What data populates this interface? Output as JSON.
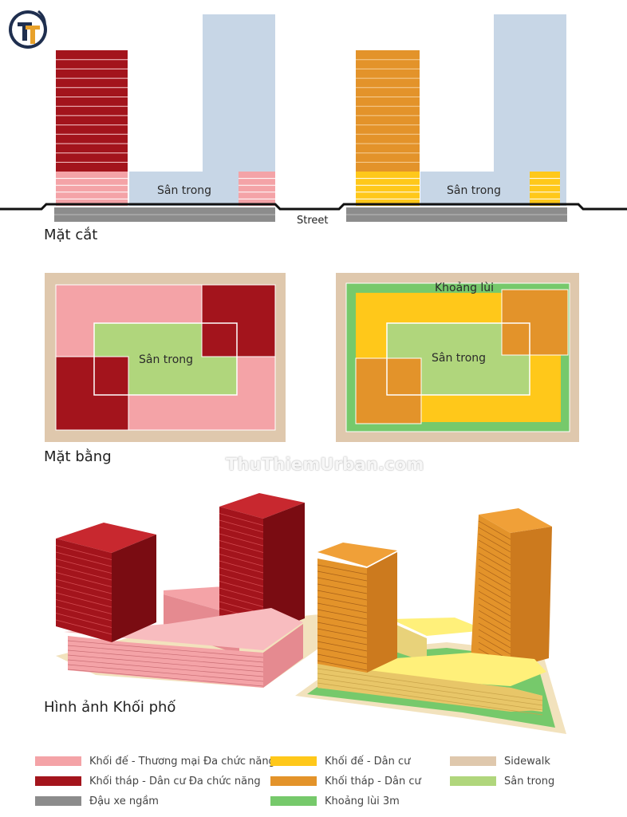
{
  "section_titles": {
    "section": "Mặt cắt",
    "plan": "Mặt bằng",
    "massing": "Hình ảnh Khối phố"
  },
  "labels": {
    "courtyard_left_section": "Sân trong",
    "courtyard_right_section": "Sân trong",
    "street": "Street",
    "courtyard_left_plan": "Sân trong",
    "courtyard_right_plan": "Sân trong",
    "setback": "Khoảng lùi"
  },
  "watermark": "ThuThiemUrban.com",
  "legend": [
    {
      "label": "Khối đế - Thương mại Đa chức năng",
      "color": "#f4a3a7"
    },
    {
      "label": "Khối tháp - Dân cư Đa chức năng",
      "color": "#a3141c"
    },
    {
      "label": "Đậu xe ngầm",
      "color": "#8c8c8c"
    },
    {
      "label": "Khối đế - Dân cư",
      "color": "#ffc81a"
    },
    {
      "label": "Khối tháp - Dân cư",
      "color": "#e3932a"
    },
    {
      "label": "Khoảng lùi 3m",
      "color": "#76c96b"
    },
    {
      "label": "Sidewalk",
      "color": "#dfc8ad"
    },
    {
      "label": "Sân trong",
      "color": "#b0d67c"
    }
  ],
  "colors": {
    "podium_commercial": "#f4a3a7",
    "tower_mixed": "#a3141c",
    "parking": "#8c8c8c",
    "podium_residential": "#ffc81a",
    "tower_residential": "#e3932a",
    "setback": "#76c96b",
    "sidewalk": "#dfc8ad",
    "courtyard": "#b0d67c",
    "sky": "#c7d6e6"
  }
}
